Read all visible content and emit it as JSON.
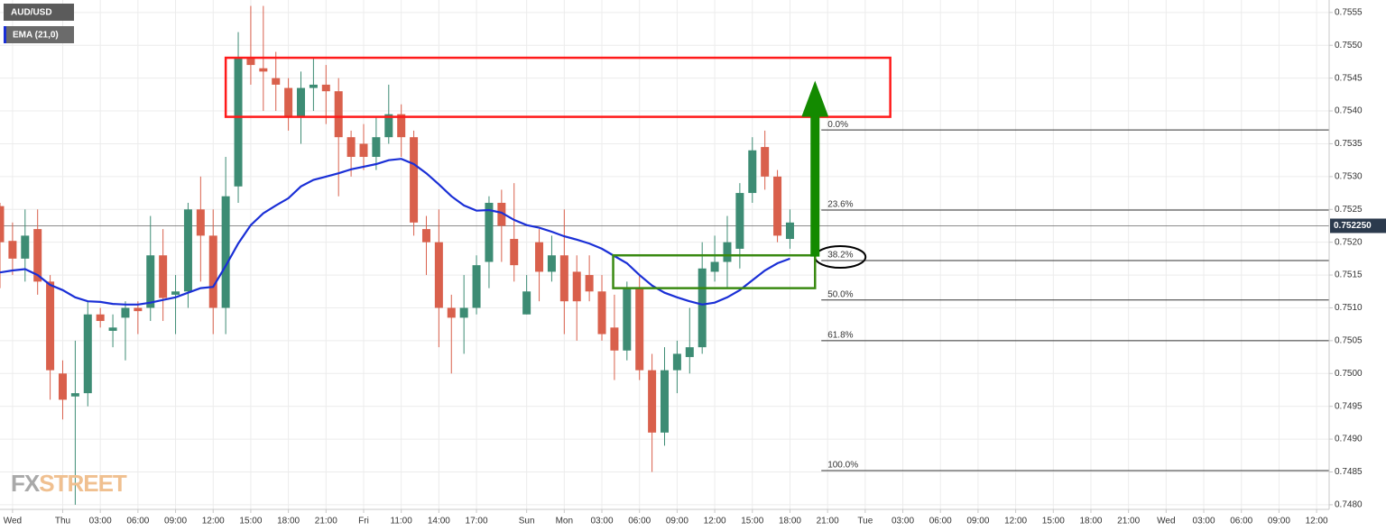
{
  "chart_data": {
    "type": "candlestick",
    "title": "AUD/USD",
    "indicator": {
      "name": "EMA (21,0)",
      "color": "#1a2fd6",
      "values": [
        0.75154,
        0.75157,
        0.75159,
        0.7515,
        0.75135,
        0.75127,
        0.75116,
        0.7511,
        0.75109,
        0.75106,
        0.75105,
        0.75105,
        0.75108,
        0.75112,
        0.75116,
        0.75123,
        0.7513,
        0.75132,
        0.75164,
        0.75198,
        0.75226,
        0.75244,
        0.75256,
        0.75267,
        0.75285,
        0.75295,
        0.753,
        0.75305,
        0.75311,
        0.75315,
        0.75319,
        0.75325,
        0.75327,
        0.75319,
        0.75305,
        0.75288,
        0.7527,
        0.75256,
        0.75248,
        0.75249,
        0.75245,
        0.75234,
        0.75226,
        0.75222,
        0.75216,
        0.75209,
        0.75204,
        0.75198,
        0.7519,
        0.75179,
        0.75168,
        0.7515,
        0.75134,
        0.75123,
        0.75116,
        0.7511,
        0.75105,
        0.75108,
        0.75116,
        0.75127,
        0.75142,
        0.75157,
        0.75168,
        0.75175
      ]
    },
    "x": [
      0,
      1,
      2,
      3,
      4,
      5,
      6,
      7,
      8,
      9,
      10,
      11,
      12,
      13,
      14,
      15,
      16,
      17,
      18,
      19,
      20,
      21,
      22,
      23,
      24,
      25,
      26,
      27,
      28,
      29,
      30,
      31,
      32,
      33,
      34,
      35,
      36,
      37,
      38,
      39,
      40,
      41,
      42,
      43,
      44,
      45,
      46,
      47,
      48,
      49,
      50,
      51,
      52,
      53,
      54,
      55,
      56,
      57,
      58,
      59,
      60,
      61,
      62,
      63
    ],
    "open": [
      0.75255,
      0.75202,
      0.75175,
      0.7522,
      0.7514,
      0.75,
      0.74965,
      0.7497,
      0.7509,
      0.75065,
      0.75085,
      0.751,
      0.751,
      0.7518,
      0.7512,
      0.75125,
      0.7525,
      0.7521,
      0.751,
      0.75285,
      0.7548,
      0.75465,
      0.7545,
      0.75435,
      0.7539,
      0.75435,
      0.7544,
      0.7543,
      0.7536,
      0.7535,
      0.7533,
      0.7536,
      0.75395,
      0.7536,
      0.7522,
      0.752,
      0.751,
      0.75085,
      0.751,
      0.7517,
      0.7526,
      0.75205,
      0.7509,
      0.752,
      0.75155,
      0.7518,
      0.75155,
      0.7515,
      0.75125,
      0.7507,
      0.75035,
      0.7513,
      0.75005,
      0.7491,
      0.75005,
      0.75025,
      0.7504,
      0.75155,
      0.7517,
      0.7519,
      0.75275,
      0.75345,
      0.753,
      0.75205
    ],
    "high": [
      0.7526,
      0.7523,
      0.7525,
      0.7525,
      0.7515,
      0.7502,
      0.7505,
      0.7511,
      0.751,
      0.7509,
      0.7511,
      0.7511,
      0.7524,
      0.7522,
      0.7515,
      0.7526,
      0.753,
      0.7525,
      0.7533,
      0.7552,
      0.7556,
      0.7556,
      0.7549,
      0.7545,
      0.7546,
      0.7548,
      0.7547,
      0.7545,
      0.7537,
      0.7538,
      0.7539,
      0.7544,
      0.7541,
      0.7537,
      0.7524,
      0.7525,
      0.7512,
      0.7515,
      0.7518,
      0.7527,
      0.7528,
      0.7529,
      0.7515,
      0.7522,
      0.7521,
      0.7525,
      0.7518,
      0.7518,
      0.7515,
      0.7512,
      0.7514,
      0.7515,
      0.7503,
      0.7504,
      0.7505,
      0.751,
      0.752,
      0.7521,
      0.7524,
      0.7529,
      0.7536,
      0.7537,
      0.7531,
      0.7525
    ],
    "low": [
      0.7513,
      0.7515,
      0.7514,
      0.7512,
      0.7496,
      0.7493,
      0.748,
      0.7495,
      0.7507,
      0.7504,
      0.7502,
      0.7506,
      0.7508,
      0.7508,
      0.7506,
      0.751,
      0.7514,
      0.7506,
      0.7506,
      0.7526,
      0.7544,
      0.754,
      0.754,
      0.7537,
      0.7535,
      0.754,
      0.7538,
      0.7527,
      0.753,
      0.7531,
      0.7531,
      0.7535,
      0.7533,
      0.7521,
      0.7515,
      0.7504,
      0.75,
      0.7503,
      0.7509,
      0.7513,
      0.7517,
      0.7514,
      0.7509,
      0.7511,
      0.7514,
      0.7506,
      0.7505,
      0.7511,
      0.7505,
      0.7499,
      0.7502,
      0.7499,
      0.7485,
      0.7489,
      0.7497,
      0.75,
      0.7503,
      0.7514,
      0.7513,
      0.7516,
      0.7526,
      0.7528,
      0.752,
      0.7519
    ],
    "close": [
      0.752,
      0.75175,
      0.7521,
      0.7514,
      0.75005,
      0.7496,
      0.7497,
      0.7509,
      0.7508,
      0.7507,
      0.751,
      0.75095,
      0.7518,
      0.75115,
      0.75125,
      0.7525,
      0.7521,
      0.751,
      0.7527,
      0.7548,
      0.7547,
      0.7546,
      0.7544,
      0.7539,
      0.75435,
      0.7544,
      0.7543,
      0.7536,
      0.7533,
      0.7533,
      0.7536,
      0.75395,
      0.7536,
      0.7523,
      0.752,
      0.751,
      0.75085,
      0.751,
      0.75165,
      0.7526,
      0.75225,
      0.75165,
      0.75125,
      0.75155,
      0.7518,
      0.7511,
      0.7511,
      0.75125,
      0.7506,
      0.75035,
      0.7513,
      0.75005,
      0.7491,
      0.75005,
      0.7503,
      0.7504,
      0.7516,
      0.7517,
      0.752,
      0.75275,
      0.7534,
      0.753,
      0.7521,
      0.7523
    ],
    "up_color": "#3d8c74",
    "down_color": "#d9604c",
    "last_price": {
      "value": 0.75225,
      "label": "0.752250"
    },
    "xlim": [
      0,
      106
    ],
    "ylim": [
      0.74793,
      0.75569
    ],
    "xticks": [
      {
        "value": 1,
        "label": "Wed"
      },
      {
        "value": 5,
        "label": "Thu"
      },
      {
        "value": 8,
        "label": "03:00"
      },
      {
        "value": 11,
        "label": "06:00"
      },
      {
        "value": 14,
        "label": "09:00"
      },
      {
        "value": 17,
        "label": "12:00"
      },
      {
        "value": 20,
        "label": "15:00"
      },
      {
        "value": 23,
        "label": "18:00"
      },
      {
        "value": 26,
        "label": "21:00"
      },
      {
        "value": 29,
        "label": "Fri"
      },
      {
        "value": 32,
        "label": "11:00"
      },
      {
        "value": 35,
        "label": "14:00"
      },
      {
        "value": 38,
        "label": "17:00"
      },
      {
        "value": 42,
        "label": "Sun"
      },
      {
        "value": 45,
        "label": "Mon"
      },
      {
        "value": 48,
        "label": "03:00"
      },
      {
        "value": 51,
        "label": "06:00"
      },
      {
        "value": 54,
        "label": "09:00"
      },
      {
        "value": 57,
        "label": "12:00"
      },
      {
        "value": 60,
        "label": "15:00"
      },
      {
        "value": 63,
        "label": "18:00"
      },
      {
        "value": 66,
        "label": "21:00"
      },
      {
        "value": 69,
        "label": "Tue"
      },
      {
        "value": 72,
        "label": "03:00"
      },
      {
        "value": 75,
        "label": "06:00"
      },
      {
        "value": 78,
        "label": "09:00"
      },
      {
        "value": 81,
        "label": "12:00"
      },
      {
        "value": 84,
        "label": "15:00"
      },
      {
        "value": 87,
        "label": "18:00"
      },
      {
        "value": 90,
        "label": "21:00"
      },
      {
        "value": 93,
        "label": "Wed"
      },
      {
        "value": 96,
        "label": "03:00"
      },
      {
        "value": 99,
        "label": "06:00"
      },
      {
        "value": 102,
        "label": "09:00"
      },
      {
        "value": 105,
        "label": "12:00"
      }
    ],
    "yticks": [
      {
        "value": 0.748,
        "label": "0.7480"
      },
      {
        "value": 0.7485,
        "label": "0.7485"
      },
      {
        "value": 0.749,
        "label": "0.7490"
      },
      {
        "value": 0.7495,
        "label": "0.7495"
      },
      {
        "value": 0.75,
        "label": "0.7500"
      },
      {
        "value": 0.7505,
        "label": "0.7505"
      },
      {
        "value": 0.751,
        "label": "0.7510"
      },
      {
        "value": 0.7515,
        "label": "0.7515"
      },
      {
        "value": 0.752,
        "label": "0.7520"
      },
      {
        "value": 0.7525,
        "label": "0.7525"
      },
      {
        "value": 0.753,
        "label": "0.7530"
      },
      {
        "value": 0.7535,
        "label": "0.7535"
      },
      {
        "value": 0.754,
        "label": "0.7540"
      },
      {
        "value": 0.7545,
        "label": "0.7545"
      },
      {
        "value": 0.755,
        "label": "0.7550"
      },
      {
        "value": 0.7555,
        "label": "0.7555"
      }
    ],
    "grid": true,
    "fibonacci": {
      "x_start": 65.5,
      "color": "#333333",
      "levels": [
        {
          "value": 0.75371,
          "label": "0.0%"
        },
        {
          "value": 0.75249,
          "label": "23.6%"
        },
        {
          "value": 0.75172,
          "label": "38.2%",
          "highlight": true
        },
        {
          "value": 0.75112,
          "label": "50.0%"
        },
        {
          "value": 0.7505,
          "label": "61.8%"
        },
        {
          "value": 0.74852,
          "label": "100.0%"
        }
      ]
    },
    "annotations": {
      "resistance_zone": {
        "x": [
          18,
          71
        ],
        "y": [
          0.75391,
          0.75481
        ],
        "color": "#ff1a1a"
      },
      "support_zone": {
        "x": [
          48.9,
          65
        ],
        "y": [
          0.7513,
          0.7518
        ],
        "color": "#3a8a12"
      },
      "arrow": {
        "x": 65,
        "y": [
          0.75178,
          0.75446
        ],
        "color": "#138a00"
      }
    },
    "watermark": [
      "FX",
      "STREET"
    ]
  }
}
